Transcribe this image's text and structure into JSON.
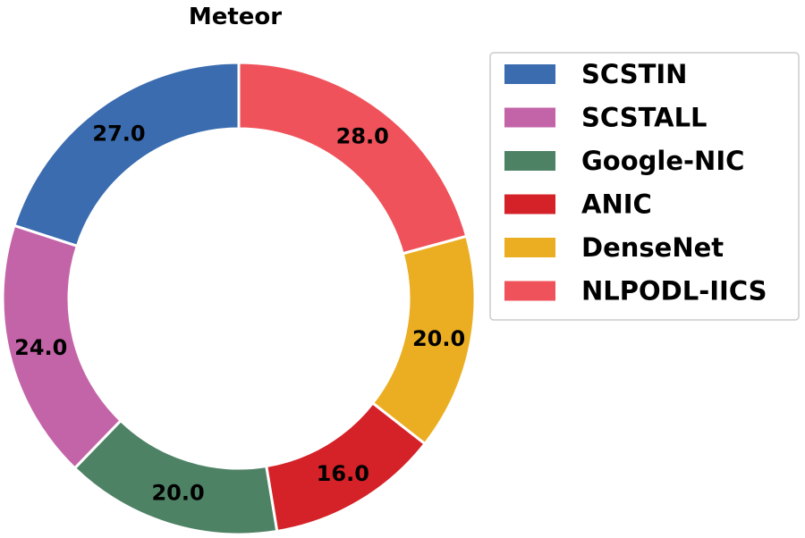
{
  "chart_data": {
    "type": "pie",
    "variant": "donut",
    "title": "Meteor",
    "categories": [
      "SCSTIN",
      "SCSTALL",
      "Google-NIC",
      "ANIC",
      "DenseNet",
      "NLPODL-IICS"
    ],
    "values": [
      27.0,
      24.0,
      20.0,
      16.0,
      20.0,
      28.0
    ],
    "value_labels": [
      "27.0",
      "24.0",
      "20.0",
      "16.0",
      "20.0",
      "28.0"
    ],
    "colors": [
      "#3b6cb0",
      "#c464a8",
      "#4e8265",
      "#d42228",
      "#ebae23",
      "#ef525a"
    ],
    "start": "top",
    "direction": "counterclockwise",
    "legend": {
      "position": "top-right",
      "entries": [
        "SCSTIN",
        "SCSTALL",
        "Google-NIC",
        "ANIC",
        "DenseNet",
        "NLPODL-IICS"
      ]
    }
  }
}
